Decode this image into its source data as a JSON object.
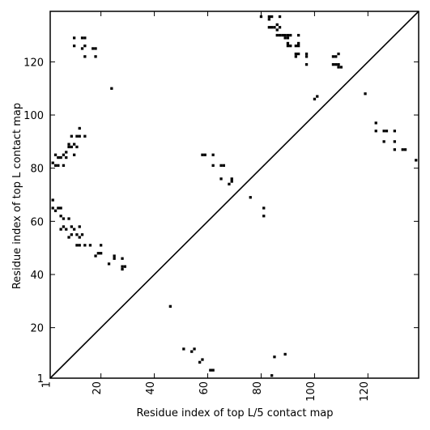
{
  "chart_data": {
    "type": "scatter",
    "title": "",
    "xlabel": "Residue index of top L/5 contact map",
    "ylabel": "Residue index of top L contact map",
    "xlim": [
      1,
      139
    ],
    "ylim": [
      1,
      139
    ],
    "xticks": [
      1,
      20,
      40,
      60,
      80,
      100,
      120
    ],
    "yticks": [
      1,
      20,
      40,
      60,
      80,
      100,
      120
    ],
    "grid": false,
    "legend": "none",
    "colors": {
      "points": "#000000",
      "diagonal": "#000000",
      "frame": "#000000"
    },
    "diagonal": [
      [
        1,
        1
      ],
      [
        139,
        139
      ]
    ],
    "series": [
      {
        "points": [
          [
            46,
            28
          ],
          [
            51,
            12
          ],
          [
            54,
            11
          ],
          [
            55,
            12
          ],
          [
            57,
            7
          ],
          [
            58,
            8
          ],
          [
            61,
            4
          ],
          [
            62,
            4
          ],
          [
            84,
            2
          ],
          [
            85,
            9
          ],
          [
            89,
            10
          ],
          [
            2,
            65
          ],
          [
            3,
            64
          ],
          [
            5,
            62
          ],
          [
            6,
            58
          ],
          [
            5,
            57
          ],
          [
            8,
            61
          ],
          [
            7,
            57
          ],
          [
            9,
            58
          ],
          [
            10,
            57
          ],
          [
            12,
            58
          ],
          [
            11,
            55
          ],
          [
            12,
            54
          ],
          [
            13,
            55
          ],
          [
            8,
            54
          ],
          [
            9,
            55
          ],
          [
            11,
            51
          ],
          [
            12,
            51
          ],
          [
            14,
            51
          ],
          [
            16,
            51
          ],
          [
            19,
            48
          ],
          [
            20,
            48
          ],
          [
            18,
            47
          ],
          [
            23,
            44
          ],
          [
            25,
            46
          ],
          [
            25,
            47
          ],
          [
            28,
            46
          ],
          [
            28,
            43
          ],
          [
            29,
            43
          ],
          [
            28,
            42
          ],
          [
            20,
            51
          ],
          [
            5,
            65
          ],
          [
            2,
            68
          ],
          [
            4,
            65
          ],
          [
            6,
            61
          ],
          [
            2,
            82
          ],
          [
            3,
            81
          ],
          [
            4,
            84
          ],
          [
            5,
            84
          ],
          [
            6,
            85
          ],
          [
            7,
            84
          ],
          [
            7,
            86
          ],
          [
            8,
            89
          ],
          [
            8,
            88
          ],
          [
            9,
            88
          ],
          [
            10,
            89
          ],
          [
            11,
            88
          ],
          [
            11,
            92
          ],
          [
            12,
            92
          ],
          [
            14,
            92
          ],
          [
            9,
            92
          ],
          [
            12,
            95
          ],
          [
            6,
            81
          ],
          [
            10,
            85
          ],
          [
            3,
            85
          ],
          [
            4,
            81
          ],
          [
            10,
            126
          ],
          [
            10,
            129
          ],
          [
            13,
            129
          ],
          [
            14,
            129
          ],
          [
            13,
            125
          ],
          [
            14,
            126
          ],
          [
            17,
            125
          ],
          [
            18,
            125
          ],
          [
            18,
            122
          ],
          [
            14,
            122
          ],
          [
            24,
            110
          ],
          [
            58,
            85
          ],
          [
            59,
            85
          ],
          [
            62,
            85
          ],
          [
            62,
            81
          ],
          [
            65,
            81
          ],
          [
            66,
            81
          ],
          [
            65,
            76
          ],
          [
            68,
            74
          ],
          [
            69,
            75
          ],
          [
            69,
            76
          ],
          [
            76,
            69
          ],
          [
            81,
            65
          ],
          [
            81,
            62
          ],
          [
            80,
            137
          ],
          [
            83,
            137
          ],
          [
            84,
            137
          ],
          [
            87,
            137
          ],
          [
            83,
            136
          ],
          [
            86,
            134
          ],
          [
            85,
            133
          ],
          [
            83,
            133
          ],
          [
            84,
            133
          ],
          [
            86,
            132
          ],
          [
            87,
            133
          ],
          [
            86,
            130
          ],
          [
            87,
            130
          ],
          [
            88,
            130
          ],
          [
            89,
            130
          ],
          [
            90,
            130
          ],
          [
            91,
            130
          ],
          [
            89,
            129
          ],
          [
            90,
            129
          ],
          [
            94,
            130
          ],
          [
            90,
            127
          ],
          [
            91,
            126
          ],
          [
            90,
            126
          ],
          [
            93,
            126
          ],
          [
            94,
            126
          ],
          [
            94,
            127
          ],
          [
            93,
            123
          ],
          [
            94,
            123
          ],
          [
            93,
            122
          ],
          [
            97,
            123
          ],
          [
            97,
            122
          ],
          [
            97,
            119
          ],
          [
            100,
            106
          ],
          [
            101,
            107
          ],
          [
            107,
            122
          ],
          [
            108,
            122
          ],
          [
            109,
            123
          ],
          [
            107,
            119
          ],
          [
            108,
            119
          ],
          [
            109,
            119
          ],
          [
            109,
            118
          ],
          [
            110,
            118
          ],
          [
            119,
            108
          ],
          [
            123,
            97
          ],
          [
            123,
            94
          ],
          [
            126,
            94
          ],
          [
            127,
            94
          ],
          [
            130,
            94
          ],
          [
            126,
            90
          ],
          [
            130,
            90
          ],
          [
            130,
            87
          ],
          [
            133,
            87
          ],
          [
            134,
            87
          ],
          [
            138,
            83
          ]
        ]
      }
    ]
  }
}
